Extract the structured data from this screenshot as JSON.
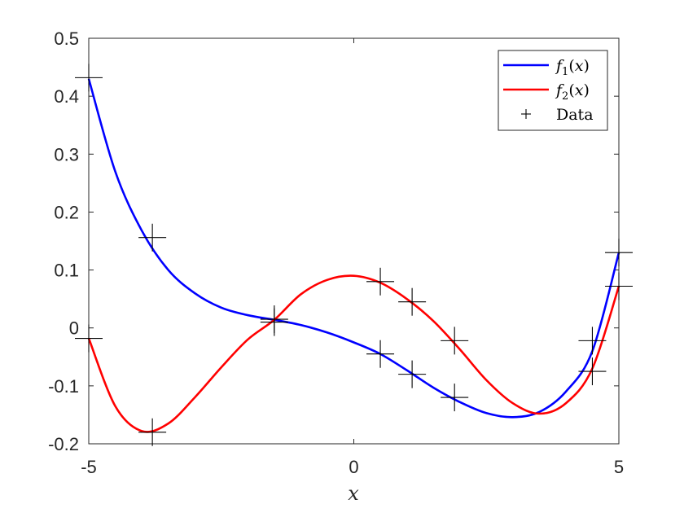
{
  "chart_data": {
    "type": "line",
    "xlabel": "x",
    "ylabel": "",
    "xlim": [
      -5,
      5
    ],
    "ylim": [
      -0.2,
      0.5
    ],
    "xticks": [
      -5,
      0,
      5
    ],
    "yticks": [
      -0.2,
      -0.1,
      0,
      0.1,
      0.2,
      0.3,
      0.4,
      0.5
    ],
    "xtick_labels": [
      "-5",
      "0",
      "5"
    ],
    "ytick_labels": [
      "-0.2",
      "-0.1",
      "0",
      "0.1",
      "0.2",
      "0.3",
      "0.4",
      "0.5"
    ],
    "grid": false,
    "legend_position": "top-right",
    "series": [
      {
        "name": "f1(x)",
        "kind": "line",
        "color": "#0000ff",
        "x": [
          -5.0,
          -4.5,
          -4.0,
          -3.5,
          -3.0,
          -2.5,
          -2.0,
          -1.5,
          -1.0,
          -0.5,
          0.0,
          0.5,
          1.0,
          1.5,
          2.0,
          2.5,
          3.0,
          3.5,
          4.0,
          4.5,
          5.0
        ],
        "y": [
          0.43,
          0.27,
          0.168,
          0.1,
          0.06,
          0.035,
          0.022,
          0.014,
          0.005,
          -0.008,
          -0.025,
          -0.045,
          -0.073,
          -0.103,
          -0.128,
          -0.147,
          -0.154,
          -0.145,
          -0.11,
          -0.04,
          0.13
        ]
      },
      {
        "name": "f2(x)",
        "kind": "line",
        "color": "#ff0000",
        "x": [
          -5.0,
          -4.5,
          -4.0,
          -3.5,
          -3.0,
          -2.5,
          -2.0,
          -1.5,
          -1.0,
          -0.5,
          0.0,
          0.5,
          1.0,
          1.5,
          2.0,
          2.5,
          3.0,
          3.5,
          4.0,
          4.5,
          5.0
        ],
        "y": [
          -0.018,
          -0.135,
          -0.178,
          -0.165,
          -0.12,
          -0.068,
          -0.02,
          0.014,
          0.058,
          0.083,
          0.09,
          0.078,
          0.05,
          0.012,
          -0.037,
          -0.09,
          -0.13,
          -0.148,
          -0.13,
          -0.07,
          0.072
        ]
      },
      {
        "name": "Data",
        "kind": "marker",
        "marker": "+",
        "color": "#000000",
        "x": [
          -5.0,
          -3.8,
          -1.5,
          0.5,
          1.1,
          1.9,
          4.5,
          5.0,
          -5.0,
          -3.8,
          -1.5,
          0.5,
          1.1,
          1.9,
          4.5,
          5.0
        ],
        "y": [
          0.432,
          0.156,
          0.015,
          -0.045,
          -0.08,
          -0.12,
          -0.022,
          0.13,
          -0.018,
          -0.18,
          0.01,
          0.08,
          0.045,
          -0.022,
          -0.075,
          0.072
        ]
      }
    ],
    "legend": [
      {
        "label_main": "f",
        "label_sub": "1",
        "label_arg": "(x)",
        "color": "#0000ff",
        "kind": "line"
      },
      {
        "label_main": "f",
        "label_sub": "2",
        "label_arg": "(x)",
        "color": "#ff0000",
        "kind": "line"
      },
      {
        "label_main": "Data",
        "label_sub": "",
        "label_arg": "",
        "color": "#000000",
        "kind": "marker"
      }
    ]
  }
}
